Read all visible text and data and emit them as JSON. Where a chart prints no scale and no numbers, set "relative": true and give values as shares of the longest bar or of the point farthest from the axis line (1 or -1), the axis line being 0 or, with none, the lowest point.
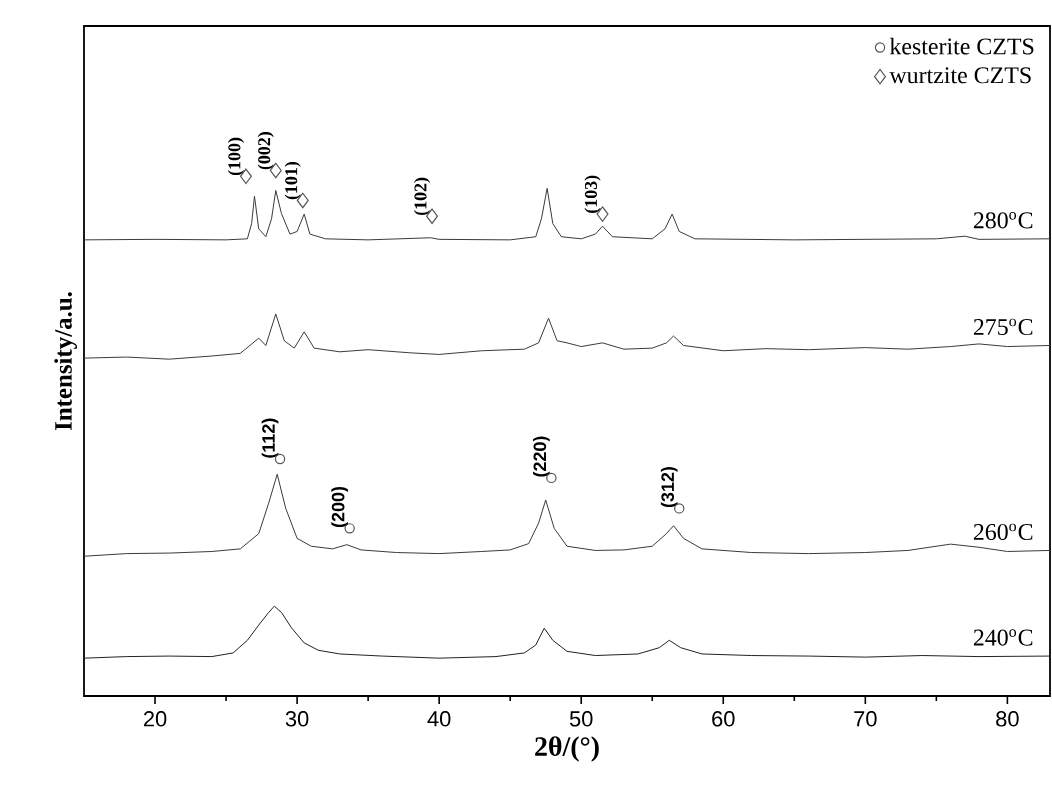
{
  "chart_data": {
    "type": "line",
    "relative": true,
    "xlabel": "2θ/(°)",
    "ylabel": "Intensity/a.u.",
    "xlim": [
      15,
      83
    ],
    "xticks": [
      20,
      30,
      40,
      50,
      60,
      70,
      80
    ],
    "tick_labels": "x",
    "legend": "top right",
    "series": [
      {
        "name": "280$^{o}$C",
        "color": "#3a3a3a",
        "x": [
          15,
          20,
          25,
          26.5,
          26.8,
          27.0,
          27.3,
          27.8,
          28.2,
          28.5,
          28.9,
          29.5,
          30.0,
          30.5,
          30.9,
          32,
          35,
          39.4,
          40,
          45,
          46.8,
          47.2,
          47.6,
          48.0,
          48.6,
          50,
          51.0,
          51.5,
          52.2,
          55,
          55.9,
          56.4,
          56.9,
          58,
          65,
          70,
          75,
          77,
          78,
          83
        ],
        "values": [
          0.868,
          0.869,
          0.868,
          0.87,
          0.899,
          0.951,
          0.889,
          0.874,
          0.908,
          0.962,
          0.918,
          0.879,
          0.884,
          0.917,
          0.879,
          0.87,
          0.868,
          0.872,
          0.869,
          0.868,
          0.874,
          0.908,
          0.966,
          0.899,
          0.874,
          0.87,
          0.879,
          0.894,
          0.874,
          0.87,
          0.889,
          0.917,
          0.884,
          0.87,
          0.868,
          0.869,
          0.87,
          0.875,
          0.869,
          0.87
        ]
      },
      {
        "name": "275$^{o}$C",
        "color": "#3a3a3a",
        "x": [
          15,
          18,
          21,
          24,
          26,
          27.3,
          27.8,
          28.5,
          29.1,
          29.8,
          30.5,
          31.2,
          33,
          35,
          38,
          40,
          43,
          46,
          47.0,
          47.7,
          48.3,
          49,
          50,
          51.5,
          53,
          55,
          56.0,
          56.5,
          57.2,
          60,
          63,
          66,
          70,
          73,
          76,
          78,
          80,
          83
        ],
        "values": [
          0.643,
          0.645,
          0.641,
          0.647,
          0.652,
          0.681,
          0.667,
          0.727,
          0.676,
          0.662,
          0.693,
          0.662,
          0.655,
          0.659,
          0.653,
          0.65,
          0.657,
          0.66,
          0.672,
          0.719,
          0.676,
          0.672,
          0.665,
          0.672,
          0.66,
          0.662,
          0.672,
          0.685,
          0.667,
          0.657,
          0.661,
          0.659,
          0.663,
          0.66,
          0.665,
          0.67,
          0.665,
          0.667
        ]
      },
      {
        "name": "260$^{o}$C",
        "color": "#3a3a3a",
        "x": [
          15,
          18,
          21,
          24,
          26,
          27.3,
          28.0,
          28.6,
          29.2,
          30,
          31,
          32.5,
          33.5,
          34.5,
          37,
          40,
          43,
          45,
          46.3,
          47.0,
          47.5,
          48.1,
          49,
          51,
          53,
          55,
          56.0,
          56.5,
          57.2,
          58.5,
          62,
          66,
          70,
          73,
          76,
          78,
          80,
          83
        ],
        "values": [
          0.266,
          0.271,
          0.272,
          0.275,
          0.28,
          0.309,
          0.367,
          0.422,
          0.357,
          0.3,
          0.285,
          0.28,
          0.288,
          0.278,
          0.273,
          0.271,
          0.275,
          0.278,
          0.29,
          0.329,
          0.373,
          0.319,
          0.285,
          0.277,
          0.278,
          0.285,
          0.309,
          0.324,
          0.3,
          0.28,
          0.273,
          0.271,
          0.273,
          0.277,
          0.289,
          0.283,
          0.275,
          0.277
        ]
      },
      {
        "name": "240$^{o}$C",
        "color": "#222222",
        "x": [
          15,
          18,
          21,
          24,
          25.5,
          26.5,
          27.3,
          28.0,
          28.4,
          28.9,
          29.6,
          30.5,
          31.5,
          33,
          36,
          40,
          44,
          46,
          46.8,
          47.4,
          48.0,
          49,
          51,
          54,
          55.5,
          56.2,
          57,
          58.5,
          62,
          66,
          70,
          74,
          78,
          83
        ],
        "values": [
          0.072,
          0.075,
          0.076,
          0.075,
          0.082,
          0.106,
          0.135,
          0.159,
          0.171,
          0.159,
          0.13,
          0.101,
          0.087,
          0.08,
          0.076,
          0.072,
          0.075,
          0.082,
          0.097,
          0.129,
          0.106,
          0.085,
          0.077,
          0.08,
          0.092,
          0.106,
          0.092,
          0.08,
          0.077,
          0.076,
          0.074,
          0.077,
          0.075,
          0.076
        ]
      },
      {
        "type": "scatter",
        "name": "kesterite CZTS",
        "marker": "circle",
        "color": "#555555",
        "x": [
          28.8,
          33.7,
          47.9,
          56.9
        ],
        "values": [
          0.451,
          0.319,
          0.415,
          0.357
        ]
      },
      {
        "type": "scatter",
        "name": "wurtzite  CZTS",
        "marker": "diamond",
        "color": "#555555",
        "x": [
          26.4,
          28.5,
          30.4,
          39.5,
          51.5
        ],
        "values": [
          0.989,
          1.0,
          0.943,
          0.913,
          0.917
        ]
      }
    ],
    "annotations": [
      {
        "text": "(100)",
        "x": 26.4,
        "y": 0.989
      },
      {
        "text": "(002)",
        "x": 28.5,
        "y": 1.0
      },
      {
        "text": "(101)",
        "x": 30.4,
        "y": 0.943
      },
      {
        "text": "(102)",
        "x": 39.5,
        "y": 0.913
      },
      {
        "text": "(103)",
        "x": 51.5,
        "y": 0.917
      },
      {
        "text": "(112)",
        "x": 28.8,
        "y": 0.451
      },
      {
        "text": "(200)",
        "x": 33.7,
        "y": 0.319
      },
      {
        "text": "(220)",
        "x": 47.9,
        "y": 0.415
      },
      {
        "text": "(312)",
        "x": 56.9,
        "y": 0.357
      }
    ]
  }
}
